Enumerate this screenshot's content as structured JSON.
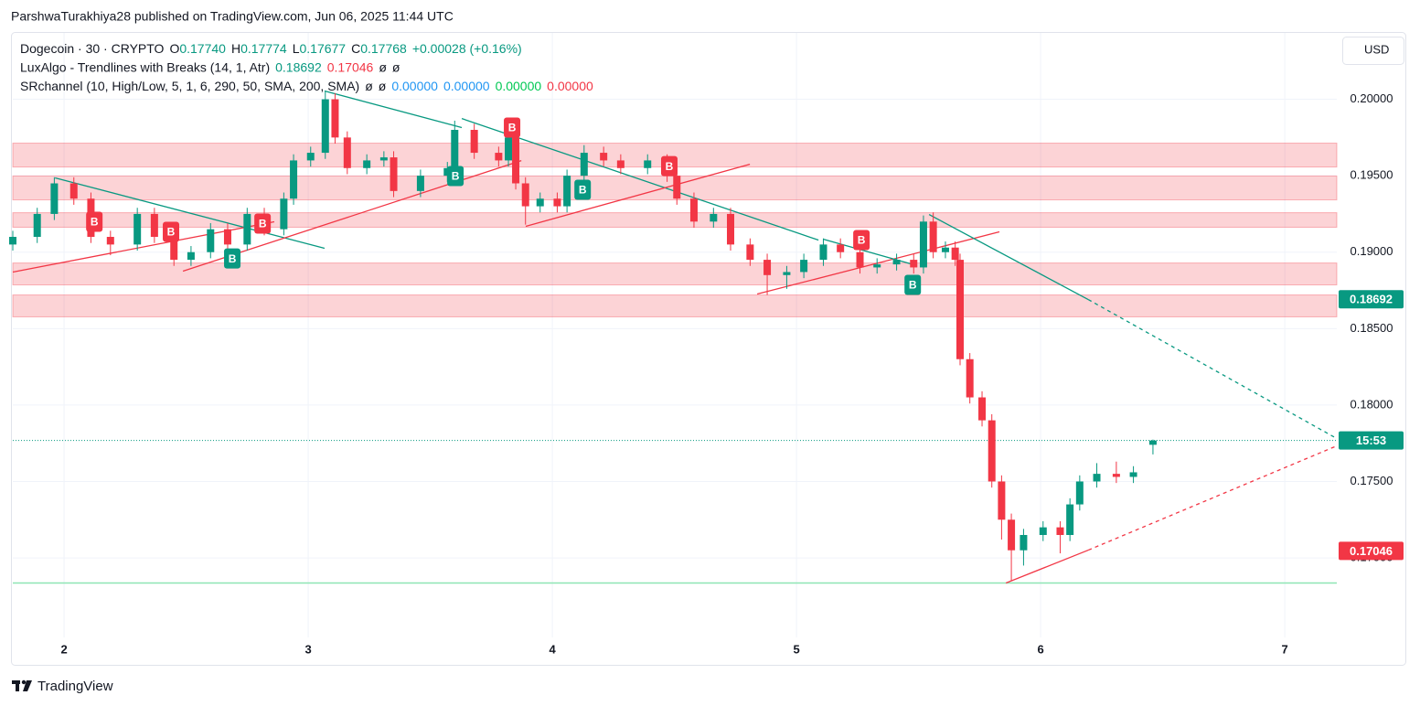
{
  "chart_data": {
    "type": "candlestick",
    "attribution": "ParshwaTurakhiya28 published on TradingView.com, Jun 06, 2025 11:44 UTC",
    "currency": "USD",
    "brand": "TradingView",
    "legend_rows": [
      [
        {
          "t": "Dogecoin · 30 · CRYPTO",
          "c": "#131722"
        },
        {
          "t": "O",
          "c": "#131722"
        },
        {
          "t": "0.17740",
          "c": "#089981"
        },
        {
          "t": "H",
          "c": "#131722"
        },
        {
          "t": "0.17774",
          "c": "#089981"
        },
        {
          "t": "L",
          "c": "#131722"
        },
        {
          "t": "0.17677",
          "c": "#089981"
        },
        {
          "t": "C",
          "c": "#131722"
        },
        {
          "t": "0.17768",
          "c": "#089981"
        },
        {
          "t": "+0.00028 (+0.16%)",
          "c": "#089981"
        }
      ],
      [
        {
          "t": "LuxAlgo - Trendlines with Breaks (14, 1, Atr)",
          "c": "#131722"
        },
        {
          "t": "0.18692",
          "c": "#089981"
        },
        {
          "t": "0.17046",
          "c": "#f23645"
        },
        {
          "t": "ø",
          "c": "#131722"
        },
        {
          "t": "ø",
          "c": "#131722"
        }
      ],
      [
        {
          "t": "SRchannel (10, High/Low, 5, 1, 6, 290, 50, SMA, 200, SMA)",
          "c": "#131722"
        },
        {
          "t": "ø",
          "c": "#131722"
        },
        {
          "t": "ø",
          "c": "#131722"
        },
        {
          "t": "0.00000",
          "c": "#2196f3"
        },
        {
          "t": "0.00000",
          "c": "#2196f3"
        },
        {
          "t": "0.00000",
          "c": "#00c853"
        },
        {
          "t": "0.00000",
          "c": "#f23645"
        }
      ]
    ],
    "up_color": "#089981",
    "down_color": "#f23645",
    "grid": true,
    "xlim": [
      1.79,
      7.213
    ],
    "xticks": [
      2,
      3,
      4,
      5,
      6,
      7
    ],
    "ylim": [
      0.1648,
      0.2044
    ],
    "yticks": [
      {
        "value": 0.2,
        "label": "0.20000"
      },
      {
        "value": 0.195,
        "label": "0.19500"
      },
      {
        "value": 0.19,
        "label": "0.19000"
      },
      {
        "value": 0.185,
        "label": "0.18500"
      },
      {
        "value": 0.18,
        "label": "0.18000"
      },
      {
        "value": 0.175,
        "label": "0.17500"
      },
      {
        "value": 0.17,
        "label": "0.17000"
      }
    ],
    "x": [
      1.79,
      1.89,
      1.96,
      2.04,
      2.11,
      2.19,
      2.3,
      2.37,
      2.45,
      2.52,
      2.6,
      2.67,
      2.75,
      2.82,
      2.9,
      2.94,
      3.01,
      3.07,
      3.11,
      3.16,
      3.24,
      3.31,
      3.35,
      3.46,
      3.57,
      3.6,
      3.68,
      3.78,
      3.82,
      3.85,
      3.89,
      3.95,
      4.02,
      4.06,
      4.13,
      4.21,
      4.28,
      4.39,
      4.47,
      4.51,
      4.58,
      4.66,
      4.73,
      4.81,
      4.88,
      4.96,
      5.03,
      5.11,
      5.18,
      5.26,
      5.33,
      5.41,
      5.48,
      5.52,
      5.56,
      5.61,
      5.65,
      5.67,
      5.71,
      5.76,
      5.8,
      5.84,
      5.88,
      5.93,
      6.01,
      6.08,
      6.12,
      6.16,
      6.23,
      6.31,
      6.38,
      6.46
    ],
    "open": [
      0.1905,
      0.191,
      0.1925,
      0.1945,
      0.1935,
      0.191,
      0.1905,
      0.1925,
      0.191,
      0.1895,
      0.19,
      0.1915,
      0.1905,
      0.1925,
      0.1915,
      0.1935,
      0.196,
      0.1965,
      0.2,
      0.1975,
      0.1955,
      0.196,
      0.1962,
      0.194,
      0.195,
      0.1955,
      0.198,
      0.1965,
      0.196,
      0.1975,
      0.1945,
      0.193,
      0.1935,
      0.193,
      0.195,
      0.1965,
      0.196,
      0.1955,
      0.196,
      0.195,
      0.1935,
      0.192,
      0.1925,
      0.1905,
      0.1895,
      0.1885,
      0.1887,
      0.1895,
      0.1905,
      0.19,
      0.189,
      0.1892,
      0.1895,
      0.189,
      0.192,
      0.19,
      0.1903,
      0.1895,
      0.183,
      0.1805,
      0.179,
      0.175,
      0.1725,
      0.1705,
      0.1715,
      0.172,
      0.1715,
      0.1735,
      0.175,
      0.1755,
      0.1753,
      0.1774
    ],
    "high": [
      0.1914,
      0.1929,
      0.1949,
      0.1949,
      0.1939,
      0.1914,
      0.1929,
      0.1929,
      0.1914,
      0.1904,
      0.1919,
      0.1919,
      0.1929,
      0.1929,
      0.1939,
      0.1964,
      0.1969,
      0.2005,
      0.2004,
      0.1979,
      0.1964,
      0.1966,
      0.1966,
      0.1954,
      0.1959,
      0.1986,
      0.1984,
      0.1969,
      0.1979,
      0.1979,
      0.1949,
      0.1939,
      0.1939,
      0.1954,
      0.197,
      0.1969,
      0.1964,
      0.1964,
      0.1964,
      0.1954,
      0.1939,
      0.1929,
      0.1929,
      0.1909,
      0.1899,
      0.1891,
      0.1899,
      0.1909,
      0.1909,
      0.1904,
      0.1896,
      0.1899,
      0.1899,
      0.1924,
      0.1926,
      0.1907,
      0.1907,
      0.1899,
      0.1834,
      0.1809,
      0.1794,
      0.1754,
      0.1729,
      0.1719,
      0.1724,
      0.1724,
      0.1739,
      0.1754,
      0.1762,
      0.1763,
      0.176,
      0.17774
    ],
    "low": [
      0.1901,
      0.1906,
      0.1921,
      0.1931,
      0.1906,
      0.1898,
      0.1901,
      0.1906,
      0.1891,
      0.1891,
      0.1896,
      0.1901,
      0.1901,
      0.1911,
      0.1911,
      0.1931,
      0.1956,
      0.1961,
      0.1971,
      0.1951,
      0.1951,
      0.1956,
      0.1936,
      0.1936,
      0.1946,
      0.1951,
      0.1961,
      0.1956,
      0.1956,
      0.1941,
      0.1918,
      0.1926,
      0.1926,
      0.1926,
      0.1946,
      0.1956,
      0.1951,
      0.1951,
      0.1946,
      0.1931,
      0.1916,
      0.1916,
      0.1901,
      0.1891,
      0.1872,
      0.1876,
      0.1883,
      0.1891,
      0.1896,
      0.1886,
      0.1886,
      0.1888,
      0.1886,
      0.1886,
      0.1896,
      0.1896,
      0.1891,
      0.1826,
      0.1801,
      0.1786,
      0.1746,
      0.1712,
      0.1685,
      0.1695,
      0.1711,
      0.1703,
      0.1711,
      0.1731,
      0.1746,
      0.1749,
      0.1749,
      0.17677
    ],
    "close": [
      0.191,
      0.1925,
      0.1945,
      0.1935,
      0.191,
      0.1905,
      0.1925,
      0.191,
      0.1895,
      0.19,
      0.1915,
      0.1905,
      0.1925,
      0.1915,
      0.1935,
      0.196,
      0.1965,
      0.2,
      0.1975,
      0.1955,
      0.196,
      0.1962,
      0.194,
      0.195,
      0.1955,
      0.198,
      0.1965,
      0.196,
      0.1975,
      0.1945,
      0.193,
      0.1935,
      0.193,
      0.195,
      0.1965,
      0.196,
      0.1955,
      0.196,
      0.195,
      0.1935,
      0.192,
      0.1925,
      0.1905,
      0.1895,
      0.1885,
      0.1887,
      0.1895,
      0.1905,
      0.19,
      0.189,
      0.1892,
      0.1895,
      0.189,
      0.192,
      0.19,
      0.1903,
      0.1895,
      0.183,
      0.1805,
      0.179,
      0.175,
      0.1725,
      0.1705,
      0.1715,
      0.172,
      0.1715,
      0.1735,
      0.175,
      0.1755,
      0.1753,
      0.1756,
      0.17768
    ],
    "zone_color": "rgba(242,54,69,0.22)",
    "zones": [
      [
        0.19713,
        0.19557
      ],
      [
        0.19498,
        0.19342
      ],
      [
        0.19258,
        0.19163
      ],
      [
        0.18929,
        0.18786
      ],
      [
        0.1872,
        0.18577
      ]
    ],
    "trendlines": [
      {
        "x": [
          1.963,
          3.067
        ],
        "y": [
          0.19486,
          0.19025
        ],
        "color": "#089981",
        "dashed": false
      },
      {
        "x": [
          1.79,
          2.861
        ],
        "y": [
          0.1887,
          0.19199
        ],
        "color": "#f23645",
        "dashed": false
      },
      {
        "x": [
          2.487,
          3.873
        ],
        "y": [
          0.18876,
          0.19599
        ],
        "color": "#f23645",
        "dashed": false
      },
      {
        "x": [
          3.067,
          3.629
        ],
        "y": [
          0.20054,
          0.19815
        ],
        "color": "#089981",
        "dashed": false
      },
      {
        "x": [
          3.629,
          5.09
        ],
        "y": [
          0.19874,
          0.19079
        ],
        "color": "#089981",
        "dashed": false
      },
      {
        "x": [
          3.891,
          4.809
        ],
        "y": [
          0.19169,
          0.19575
        ],
        "color": "#f23645",
        "dashed": false
      },
      {
        "x": [
          4.839,
          5.831
        ],
        "y": [
          0.18726,
          0.19133
        ],
        "color": "#f23645",
        "dashed": false
      },
      {
        "x": [
          5.109,
          5.483
        ],
        "y": [
          0.19085,
          0.18917
        ],
        "color": "#089981",
        "dashed": false
      },
      {
        "x": [
          5.543,
          6.195
        ],
        "y": [
          0.19246,
          0.1869
        ],
        "color": "#089981",
        "dashed": false
      },
      {
        "x": [
          6.195,
          7.213
        ],
        "y": [
          0.1869,
          0.17781
        ],
        "color": "#089981",
        "dashed": true
      },
      {
        "x": [
          5.858,
          6.195
        ],
        "y": [
          0.16836,
          0.17051
        ],
        "color": "#f23645",
        "dashed": false
      },
      {
        "x": [
          6.195,
          7.213
        ],
        "y": [
          0.17051,
          0.17733
        ],
        "color": "#f23645",
        "dashed": true
      }
    ],
    "markers": [
      {
        "label": "B",
        "x": 2.124,
        "price": 0.19199,
        "color": "#f23645"
      },
      {
        "label": "B",
        "x": 2.438,
        "price": 0.19133,
        "color": "#f23645"
      },
      {
        "label": "B",
        "x": 2.813,
        "price": 0.19187,
        "color": "#f23645"
      },
      {
        "label": "B",
        "x": 3.835,
        "price": 0.19815,
        "color": "#f23645"
      },
      {
        "label": "B",
        "x": 4.479,
        "price": 0.19563,
        "color": "#f23645"
      },
      {
        "label": "B",
        "x": 5.266,
        "price": 0.19079,
        "color": "#f23645"
      },
      {
        "label": "B",
        "x": 2.689,
        "price": 0.18959,
        "color": "#089981"
      },
      {
        "label": "B",
        "x": 3.603,
        "price": 0.19498,
        "color": "#089981"
      },
      {
        "label": "B",
        "x": 4.124,
        "price": 0.19408,
        "color": "#089981"
      },
      {
        "label": "B",
        "x": 5.476,
        "price": 0.18786,
        "color": "#089981"
      }
    ],
    "sr_line": {
      "value": 0.16836,
      "color": "#8ee6b4"
    },
    "current_price": 0.17768,
    "countdown": "15:53",
    "price_labels": [
      {
        "value": 0.18692,
        "color": "#089981"
      },
      {
        "value": 0.17046,
        "color": "#f23645"
      }
    ]
  }
}
